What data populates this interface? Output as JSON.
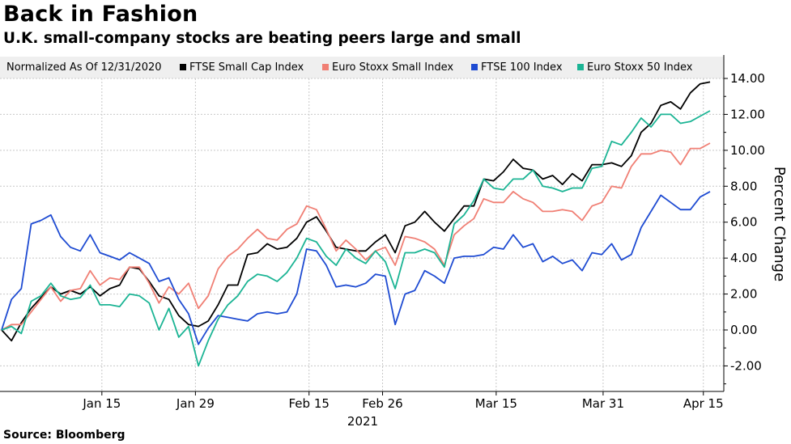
{
  "title": "Back in Fashion",
  "subtitle": "U.K. small-company stocks are beating peers large and small",
  "source": "Source: Bloomberg",
  "legend_note": "Normalized As Of 12/31/2020",
  "chart_data": {
    "type": "line",
    "ylabel": "Percent Change",
    "xlabel": "2021",
    "ylim": [
      -3.2,
      15.2
    ],
    "yticks": [
      -2,
      0,
      2,
      4,
      6,
      8,
      10,
      12,
      14
    ],
    "ytick_labels": [
      "-2.00",
      "0.00",
      "2.00",
      "4.00",
      "6.00",
      "8.00",
      "10.00",
      "12.00",
      "14.00"
    ],
    "x_start": "2020-12-31",
    "x_end": "2021-04-16",
    "xticks": [
      {
        "label": "Jan 15",
        "date": "2021-01-15"
      },
      {
        "label": "Jan 29",
        "date": "2021-01-29"
      },
      {
        "label": "Feb 15",
        "date": "2021-02-15"
      },
      {
        "label": "Feb 26",
        "date": "2021-02-26"
      },
      {
        "label": "Mar 15",
        "date": "2021-03-15"
      },
      {
        "label": "Mar 31",
        "date": "2021-03-31"
      },
      {
        "label": "Apr 15",
        "date": "2021-04-15"
      }
    ],
    "grid": true,
    "legend_position": "top",
    "series": [
      {
        "name": "FTSE Small Cap Index",
        "color": "#000000",
        "values": [
          0.0,
          -0.6,
          0.4,
          1.2,
          1.8,
          2.4,
          2.0,
          2.2,
          2.0,
          2.4,
          1.9,
          2.3,
          2.5,
          3.5,
          3.4,
          2.7,
          1.9,
          1.7,
          0.8,
          0.3,
          0.2,
          0.5,
          1.4,
          2.5,
          2.5,
          4.2,
          4.3,
          4.8,
          4.5,
          4.6,
          5.1,
          6.0,
          6.3,
          5.5,
          4.6,
          4.5,
          4.4,
          4.4,
          4.9,
          5.3,
          4.3,
          5.8,
          6.0,
          6.6,
          6.0,
          5.5,
          6.2,
          6.9,
          6.9,
          8.4,
          8.3,
          8.8,
          9.5,
          9.0,
          8.9,
          8.4,
          8.6,
          8.1,
          8.7,
          8.3,
          9.2,
          9.2,
          9.3,
          9.1,
          9.7,
          11.0,
          11.5,
          12.5,
          12.7,
          12.3,
          13.2,
          13.7,
          13.8
        ]
      },
      {
        "name": "Euro Stoxx Small Index",
        "color": "#f07f74",
        "values": [
          0.0,
          0.3,
          0.3,
          1.0,
          1.7,
          2.4,
          1.6,
          2.2,
          2.3,
          3.3,
          2.5,
          2.9,
          2.8,
          3.5,
          3.5,
          2.6,
          1.5,
          2.4,
          2.0,
          2.6,
          1.2,
          1.9,
          3.4,
          4.1,
          4.5,
          5.1,
          5.6,
          5.1,
          5.0,
          5.6,
          5.9,
          6.9,
          6.7,
          5.6,
          4.4,
          5.0,
          4.5,
          3.9,
          4.4,
          4.6,
          3.6,
          5.2,
          5.1,
          4.9,
          4.5,
          3.6,
          5.3,
          5.8,
          6.2,
          7.3,
          7.1,
          7.1,
          7.7,
          7.3,
          7.1,
          6.6,
          6.6,
          6.7,
          6.6,
          6.1,
          6.9,
          7.1,
          8.0,
          7.9,
          9.1,
          9.8,
          9.8,
          10.0,
          9.9,
          9.2,
          10.1,
          10.1,
          10.4
        ]
      },
      {
        "name": "FTSE 100 Index",
        "color": "#1e4bd2",
        "values": [
          0.0,
          1.7,
          2.3,
          5.9,
          6.1,
          6.4,
          5.2,
          4.6,
          4.4,
          5.3,
          4.3,
          4.1,
          3.9,
          4.3,
          4.0,
          3.7,
          2.7,
          2.9,
          1.7,
          0.9,
          -0.8,
          0.1,
          0.8,
          0.7,
          0.6,
          0.5,
          0.9,
          1.0,
          0.9,
          1.0,
          2.0,
          4.5,
          4.4,
          3.6,
          2.4,
          2.5,
          2.4,
          2.6,
          3.1,
          3.0,
          0.3,
          2.0,
          2.2,
          3.3,
          3.0,
          2.6,
          4.0,
          4.1,
          4.1,
          4.2,
          4.6,
          4.5,
          5.3,
          4.6,
          4.8,
          3.8,
          4.1,
          3.7,
          3.9,
          3.3,
          4.3,
          4.2,
          4.8,
          3.9,
          4.2,
          5.7,
          6.6,
          7.5,
          7.1,
          6.7,
          6.7,
          7.4,
          7.7
        ]
      },
      {
        "name": "Euro Stoxx 50 Index",
        "color": "#1bb494",
        "values": [
          0.0,
          0.2,
          -0.2,
          1.6,
          1.9,
          2.6,
          1.9,
          1.7,
          1.8,
          2.5,
          1.4,
          1.4,
          1.3,
          2.0,
          1.9,
          1.5,
          0.0,
          1.2,
          -0.4,
          0.2,
          -2.0,
          -0.6,
          0.6,
          1.4,
          1.9,
          2.7,
          3.1,
          3.0,
          2.7,
          3.2,
          4.0,
          5.1,
          4.9,
          4.1,
          3.6,
          4.5,
          4.0,
          3.7,
          4.4,
          3.8,
          2.3,
          4.3,
          4.3,
          4.5,
          4.3,
          3.5,
          5.9,
          6.4,
          7.2,
          8.4,
          7.9,
          7.8,
          8.4,
          8.4,
          8.9,
          8.0,
          7.9,
          7.7,
          7.9,
          7.9,
          9.0,
          9.1,
          10.5,
          10.3,
          11.0,
          11.8,
          11.3,
          12.0,
          12.0,
          11.5,
          11.6,
          11.9,
          12.2
        ]
      }
    ]
  }
}
